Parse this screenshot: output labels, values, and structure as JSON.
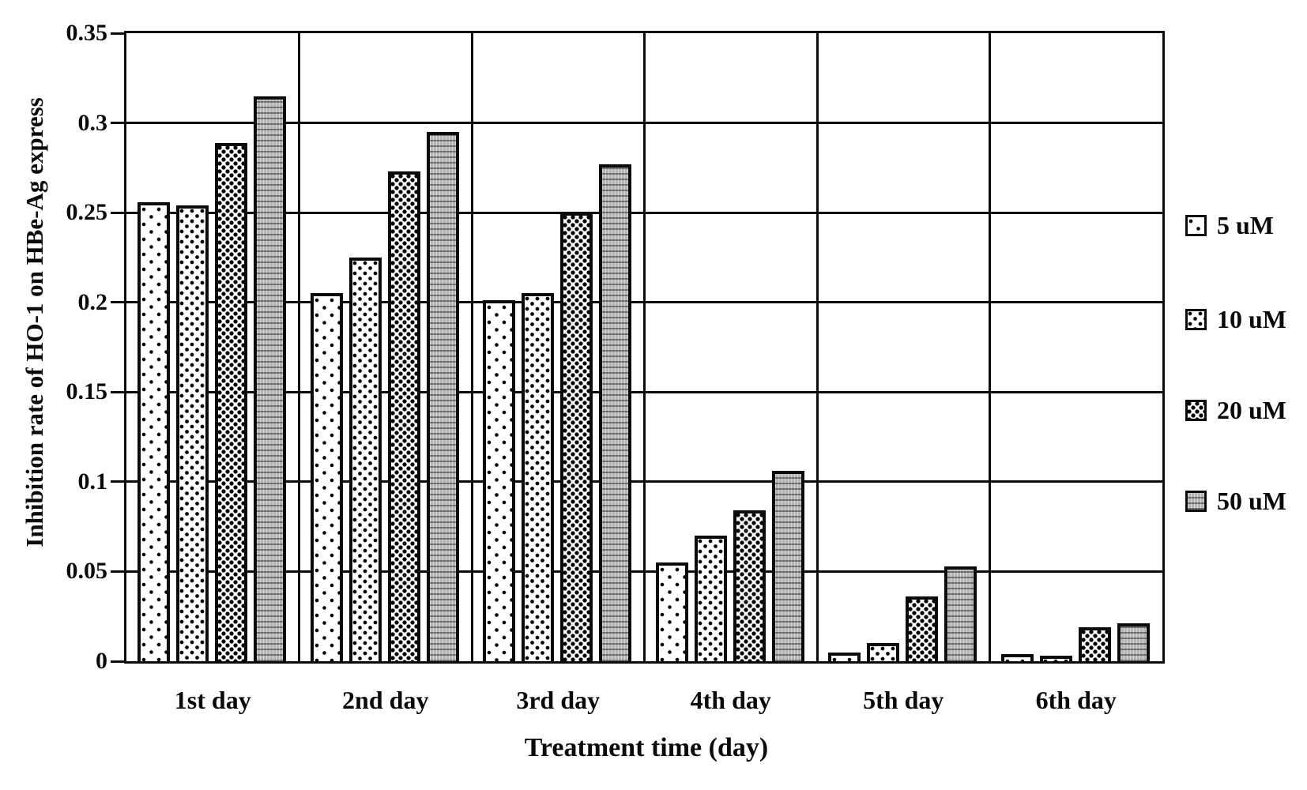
{
  "chart_data": {
    "type": "bar",
    "title": "",
    "xlabel": "Treatment time (day)",
    "ylabel": "Inhibition rate of HO-1 on HBe-Ag express",
    "categories": [
      "1st day",
      "2nd day",
      "3rd day",
      "4th day",
      "5th day",
      "6th day"
    ],
    "series": [
      {
        "name": "5 uM",
        "pattern": "sparse-dots",
        "values": [
          0.256,
          0.205,
          0.201,
          0.055,
          0.005,
          0.004
        ]
      },
      {
        "name": "10 uM",
        "pattern": "medium-dots",
        "values": [
          0.254,
          0.225,
          0.205,
          0.07,
          0.01,
          0.003
        ]
      },
      {
        "name": "20 uM",
        "pattern": "dense-dots",
        "values": [
          0.289,
          0.273,
          0.25,
          0.084,
          0.036,
          0.019
        ]
      },
      {
        "name": "50 uM",
        "pattern": "gray-weave",
        "values": [
          0.315,
          0.295,
          0.277,
          0.106,
          0.053,
          0.021
        ]
      }
    ],
    "ylim": [
      0,
      0.35
    ],
    "ytick_step": 0.05,
    "yticks": [
      "0",
      "0.05",
      "0.1",
      "0.15",
      "0.2",
      "0.25",
      "0.3",
      "0.35"
    ],
    "grid": true,
    "legend_position": "right"
  },
  "colors": {
    "foreground": "#0a0a0a",
    "background": "#ffffff",
    "gray_fill": "#b4b4b4"
  }
}
